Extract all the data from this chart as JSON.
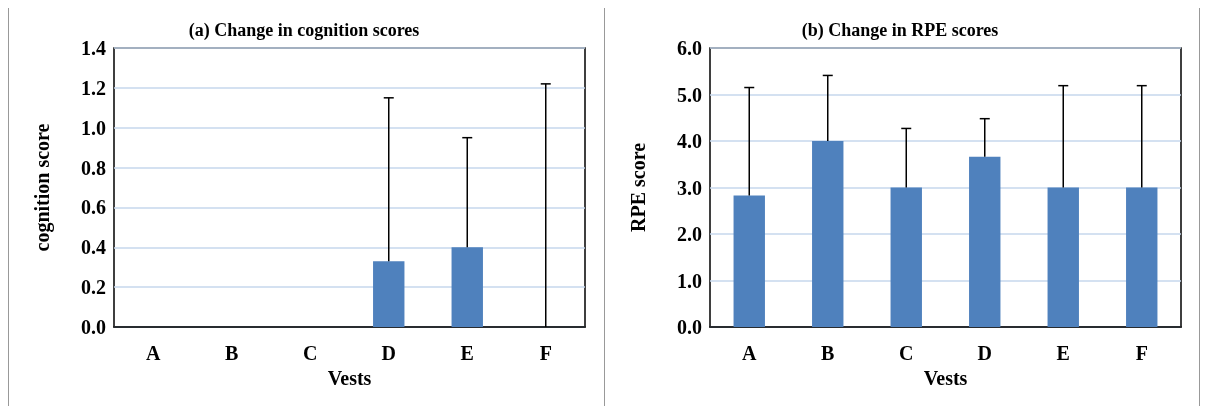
{
  "chart_data": [
    {
      "type": "bar",
      "title": "(a) Change in cognition scores",
      "xlabel": "Vests",
      "ylabel": "cognition score",
      "categories": [
        "A",
        "B",
        "C",
        "D",
        "E",
        "F"
      ],
      "values": [
        0,
        0,
        0,
        0.33,
        0.4,
        0
      ],
      "errors": [
        null,
        null,
        null,
        [
          0.33,
          1.15
        ],
        [
          0.4,
          0.95
        ],
        [
          0,
          1.22
        ]
      ],
      "color": "#4f81bd",
      "ylim": [
        0,
        1.4
      ],
      "yticks": [
        {
          "value": 0,
          "label": "0.0"
        },
        0.2,
        0.4,
        0.6,
        0.8,
        {
          "value": 1,
          "label": "1.0"
        },
        1.2,
        1.4
      ],
      "grid": "y"
    },
    {
      "type": "bar",
      "title": "(b) Change in RPE scores",
      "xlabel": "Vests",
      "ylabel": "RPE score",
      "categories": [
        "A",
        "B",
        "C",
        "D",
        "E",
        "F"
      ],
      "values": [
        2.83,
        4,
        3,
        3.66,
        3,
        3
      ],
      "errors": [
        [
          2.83,
          5.15
        ],
        [
          4,
          5.41
        ],
        [
          3,
          4.27
        ],
        [
          3.66,
          4.48
        ],
        [
          3,
          5.19
        ],
        [
          3,
          5.19
        ]
      ],
      "color": "#4f81bd",
      "ylim": [
        0,
        6
      ],
      "yticks": [
        {
          "value": 0,
          "label": "0.0"
        },
        {
          "value": 1,
          "label": "1.0"
        },
        {
          "value": 2,
          "label": "2.0"
        },
        {
          "value": 3,
          "label": "3.0"
        },
        {
          "value": 4,
          "label": "4.0"
        },
        {
          "value": 5,
          "label": "5.0"
        },
        {
          "value": 6,
          "label": "6.0"
        }
      ],
      "grid": "y"
    }
  ]
}
